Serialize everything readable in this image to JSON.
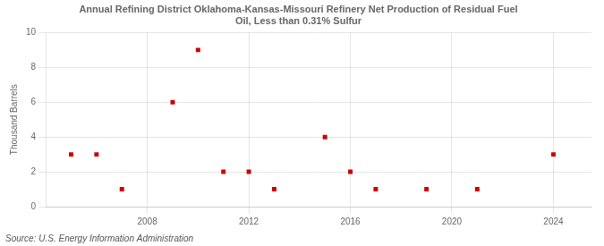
{
  "chart_data": {
    "type": "scatter",
    "title": "Annual Refining District Oklahoma-Kansas-Missouri Refinery Net Production of Residual Fuel\nOil, Less than 0.31% Sulfur",
    "y_label": "Thousand Barrels",
    "annotations": [
      "Source: U.S. Energy Information Administration"
    ],
    "x": [
      2005,
      2006,
      2007,
      2009,
      2010,
      2011,
      2012,
      2013,
      2015,
      2016,
      2017,
      2019,
      2021,
      2024
    ],
    "values": [
      3,
      3,
      1,
      6,
      9,
      2,
      2,
      1,
      4,
      2,
      1,
      1,
      1,
      3
    ],
    "color": "#cc0000",
    "marker": "square",
    "xlim": [
      2004,
      2025.5
    ],
    "xticks": [
      2008,
      2012,
      2016,
      2020,
      2024
    ],
    "ylim": [
      0,
      10
    ],
    "yticks": [
      0,
      2,
      4,
      6,
      8,
      10
    ],
    "grid": true
  }
}
